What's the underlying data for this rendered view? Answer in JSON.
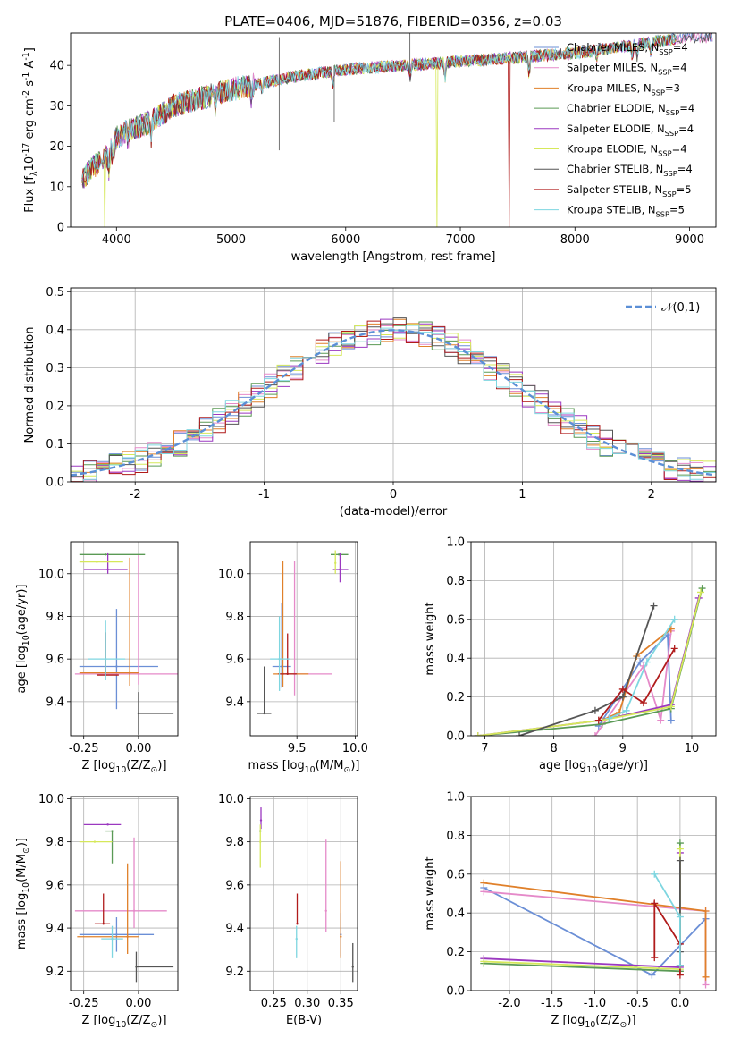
{
  "figure": {
    "title": "PLATE=0406, MJD=51876, FIBERID=0356, z=0.03"
  },
  "colors": {
    "Chabrier MILES": "#6b8fd6",
    "Salpeter MILES": "#e58ac9",
    "Kroupa MILES": "#e0802a",
    "Chabrier ELODIE": "#5a9a55",
    "Salpeter ELODIE": "#9b38c0",
    "Kroupa ELODIE": "#d6e85a",
    "Chabrier STELIB": "#555555",
    "Salpeter STELIB": "#b01b1b",
    "Kroupa STELIB": "#7ed6e0"
  },
  "chart_data": [
    {
      "id": "spectrum",
      "type": "line",
      "title": "PLATE=0406, MJD=51876, FIBERID=0356, z=0.03",
      "xlabel": "wavelength [Angstrom, rest frame]",
      "ylabel": "Flux [f$_\\lambda$10$^{-17}$ erg cm$^{-2}$ s$^{-1}$ A$^{-1}$]",
      "xlim": [
        3600,
        9230
      ],
      "ylim": [
        0,
        48
      ],
      "xticks": [
        4000,
        5000,
        6000,
        7000,
        8000,
        9000
      ],
      "yticks": [
        0,
        10,
        20,
        30,
        40
      ],
      "legend_position": "upper right",
      "series": [
        {
          "name": "Chabrier MILES, N$_{SSP}$=4"
        },
        {
          "name": "Salpeter MILES, N$_{SSP}$=4"
        },
        {
          "name": "Kroupa MILES, N$_{SSP}$=3"
        },
        {
          "name": "Chabrier ELODIE, N$_{SSP}$=4"
        },
        {
          "name": "Salpeter ELODIE, N$_{SSP}$=4"
        },
        {
          "name": "Kroupa ELODIE, N$_{SSP}$=4"
        },
        {
          "name": "Chabrier STELIB, N$_{SSP}$=4"
        },
        {
          "name": "Salpeter STELIB, N$_{SSP}$=5"
        },
        {
          "name": "Kroupa STELIB, N$_{SSP}$=5"
        }
      ],
      "continuum": {
        "x": [
          3700,
          3800,
          3900,
          4000,
          4100,
          4300,
          4500,
          5000,
          5500,
          6000,
          6500,
          7000,
          7500,
          8000,
          8500,
          9000
        ],
        "y": [
          12,
          15,
          17,
          22,
          24,
          26,
          30,
          34,
          37,
          39,
          40,
          41,
          42,
          43,
          45,
          47
        ]
      },
      "drops": [
        {
          "x": 3900,
          "series": "Kroupa ELODIE"
        },
        {
          "x": 6800,
          "series": "Kroupa ELODIE"
        },
        {
          "x": 7430,
          "series": "Salpeter STELIB"
        }
      ],
      "spikes": [
        {
          "x": 5420,
          "ymin": 19,
          "ymax": 47
        },
        {
          "x": 6560,
          "ymin": 38,
          "ymax": 48
        },
        {
          "x": 5900,
          "ymin": 26,
          "ymax": 40
        }
      ]
    },
    {
      "id": "residuals",
      "type": "line",
      "xlabel": "(data-model)/error",
      "ylabel": "Normed distribution",
      "xlim": [
        -2.5,
        2.5
      ],
      "ylim": [
        0,
        0.51
      ],
      "xticks": [
        -2,
        -1,
        0,
        1,
        2
      ],
      "yticks": [
        0.0,
        0.1,
        0.2,
        0.3,
        0.4,
        0.5
      ],
      "grid": true,
      "legend": "$\\mathcal{N}(0,1)$",
      "legend_position": "upper right",
      "bin_width": 0.1
    },
    {
      "id": "age_vs_Z",
      "type": "scatter",
      "xlabel": "Z [log$_{10}$(Z/Z$_\\odot$)]",
      "ylabel": "age  [log$_{10}$(age/yr)]",
      "xlim": [
        -0.31,
        0.18
      ],
      "ylim": [
        9.24,
        10.15
      ],
      "xticks": [
        -0.25,
        0.0
      ],
      "yticks": [
        9.4,
        9.6,
        9.8,
        10.0
      ],
      "grid": true,
      "points": [
        {
          "series": "Chabrier MILES",
          "x": -0.1,
          "y": 9.565,
          "xerr": [
            0.17,
            0.19
          ],
          "yerr": [
            0.2,
            0.27
          ]
        },
        {
          "series": "Salpeter MILES",
          "x": 0.0,
          "y": 9.53,
          "xerr": [
            0.29,
            0.21
          ],
          "yerr": [
            0.05,
            0.56
          ]
        },
        {
          "series": "Kroupa MILES",
          "x": -0.04,
          "y": 9.535,
          "xerr": [
            0.23,
            0.04
          ],
          "yerr": [
            0.06,
            0.54
          ]
        },
        {
          "series": "Chabrier ELODIE",
          "x": -0.15,
          "y": 10.09,
          "xerr": [
            0.12,
            0.18
          ],
          "yerr": [
            0.0,
            0.0
          ]
        },
        {
          "series": "Salpeter ELODIE",
          "x": -0.14,
          "y": 10.02,
          "xerr": [
            0.11,
            0.09
          ],
          "yerr": [
            0.02,
            0.08
          ]
        },
        {
          "series": "Kroupa ELODIE",
          "x": -0.19,
          "y": 10.055,
          "xerr": [
            0.08,
            0.12
          ],
          "yerr": [
            0.0,
            0.0
          ]
        },
        {
          "series": "Chabrier STELIB",
          "x": 0.0,
          "y": 9.345,
          "xerr": [
            0.0,
            0.16
          ],
          "yerr": [
            0.1,
            0.1
          ]
        },
        {
          "series": "Salpeter STELIB",
          "x": -0.15,
          "y": 9.525,
          "xerr": [
            0.04,
            0.06
          ],
          "yerr": [
            0.0,
            0.2
          ]
        },
        {
          "series": "Kroupa STELIB",
          "x": -0.15,
          "y": 9.6,
          "xerr": [
            0.08,
            0.09
          ],
          "yerr": [
            0.1,
            0.18
          ]
        }
      ]
    },
    {
      "id": "age_vs_mass",
      "type": "scatter",
      "xlabel": "mass [log$_{10}$(M/M$_\\odot$)]",
      "ylabel": "",
      "xlim": [
        9.1,
        10.02
      ],
      "ylim": [
        9.24,
        10.15
      ],
      "xticks": [
        9.5,
        10.0
      ],
      "yticks": [
        9.4,
        9.6,
        9.8,
        10.0
      ],
      "grid": true,
      "points": [
        {
          "series": "Chabrier MILES",
          "x": 9.37,
          "y": 9.565,
          "xerr": [
            0.08,
            0.08
          ],
          "yerr": [
            0.1,
            0.3
          ]
        },
        {
          "series": "Salpeter MILES",
          "x": 9.48,
          "y": 9.53,
          "xerr": [
            0.08,
            0.32
          ],
          "yerr": [
            0.1,
            0.53
          ]
        },
        {
          "series": "Kroupa MILES",
          "x": 9.38,
          "y": 9.53,
          "xerr": [
            0.08,
            0.22
          ],
          "yerr": [
            0.06,
            0.53
          ]
        },
        {
          "series": "Chabrier ELODIE",
          "x": 9.86,
          "y": 10.09,
          "xerr": [
            0.07,
            0.08
          ],
          "yerr": [
            0.0,
            0.0
          ]
        },
        {
          "series": "Salpeter ELODIE",
          "x": 9.87,
          "y": 10.02,
          "xerr": [
            0.06,
            0.07
          ],
          "yerr": [
            0.06,
            0.08
          ]
        },
        {
          "series": "Kroupa ELODIE",
          "x": 9.83,
          "y": 10.05,
          "xerr": [
            0.0,
            0.0
          ],
          "yerr": [
            0.05,
            0.06
          ]
        },
        {
          "series": "Chabrier STELIB",
          "x": 9.22,
          "y": 9.345,
          "xerr": [
            0.06,
            0.06
          ],
          "yerr": [
            0.0,
            0.22
          ]
        },
        {
          "series": "Salpeter STELIB",
          "x": 9.42,
          "y": 9.53,
          "xerr": [
            0.08,
            0.08
          ],
          "yerr": [
            0.0,
            0.19
          ]
        },
        {
          "series": "Kroupa STELIB",
          "x": 9.35,
          "y": 9.6,
          "xerr": [
            0.08,
            0.09
          ],
          "yerr": [
            0.15,
            0.2
          ]
        }
      ]
    },
    {
      "id": "weight_vs_age",
      "type": "line",
      "xlabel": "age  [log$_{10}$(age/yr)]",
      "ylabel": "mass weight",
      "xlim": [
        6.8,
        10.35
      ],
      "ylim": [
        0,
        1.0
      ],
      "xticks": [
        7,
        8,
        9,
        10
      ],
      "yticks": [
        0.0,
        0.2,
        0.4,
        0.6,
        0.8,
        1.0
      ],
      "grid": true,
      "series": [
        {
          "series": "Chabrier MILES",
          "x": [
            8.65,
            9.25,
            9.65,
            9.7
          ],
          "y": [
            0.05,
            0.38,
            0.52,
            0.08
          ]
        },
        {
          "series": "Salpeter MILES",
          "x": [
            8.6,
            9.3,
            9.55,
            9.7
          ],
          "y": [
            0.0,
            0.36,
            0.08,
            0.54
          ]
        },
        {
          "series": "Kroupa MILES",
          "x": [
            8.7,
            8.95,
            9.2,
            9.7
          ],
          "y": [
            0.08,
            0.12,
            0.41,
            0.55
          ]
        },
        {
          "series": "Chabrier ELODIE",
          "x": [
            6.9,
            8.7,
            9.7,
            10.15
          ],
          "y": [
            0.0,
            0.06,
            0.14,
            0.76
          ]
        },
        {
          "series": "Salpeter ELODIE",
          "x": [
            6.9,
            8.7,
            9.7,
            10.1
          ],
          "y": [
            0.0,
            0.08,
            0.16,
            0.71
          ]
        },
        {
          "series": "Kroupa ELODIE",
          "x": [
            6.9,
            8.7,
            9.7,
            10.13
          ],
          "y": [
            0.0,
            0.08,
            0.15,
            0.74
          ]
        },
        {
          "series": "Chabrier STELIB",
          "x": [
            7.5,
            8.6,
            9.0,
            9.45
          ],
          "y": [
            0.0,
            0.13,
            0.2,
            0.67
          ]
        },
        {
          "series": "Salpeter STELIB",
          "x": [
            8.65,
            9.0,
            9.3,
            9.75
          ],
          "y": [
            0.08,
            0.24,
            0.17,
            0.45
          ]
        },
        {
          "series": "Kroupa STELIB",
          "x": [
            8.8,
            9.05,
            9.35,
            9.75
          ],
          "y": [
            0.09,
            0.13,
            0.38,
            0.6
          ]
        }
      ]
    },
    {
      "id": "mass_vs_Z",
      "type": "scatter",
      "xlabel": "Z [log$_{10}$(Z/Z$_\\odot$)]",
      "ylabel": "mass [log$_{10}$(M/M$_\\odot$)]",
      "xlim": [
        -0.31,
        0.18
      ],
      "ylim": [
        9.11,
        10.01
      ],
      "xticks": [
        -0.25,
        0.0
      ],
      "yticks": [
        9.2,
        9.4,
        9.6,
        9.8,
        10.0
      ],
      "grid": true,
      "points": [
        {
          "series": "Chabrier MILES",
          "x": -0.1,
          "y": 9.37,
          "xerr": [
            0.17,
            0.17
          ],
          "yerr": [
            0.08,
            0.08
          ]
        },
        {
          "series": "Salpeter MILES",
          "x": -0.02,
          "y": 9.48,
          "xerr": [
            0.27,
            0.15
          ],
          "yerr": [
            0.08,
            0.34
          ]
        },
        {
          "series": "Kroupa MILES",
          "x": -0.05,
          "y": 9.36,
          "xerr": [
            0.23,
            0.05
          ],
          "yerr": [
            0.08,
            0.34
          ]
        },
        {
          "series": "Chabrier ELODIE",
          "x": -0.12,
          "y": 9.85,
          "xerr": [
            0.03,
            0.0
          ],
          "yerr": [
            0.15,
            0.0
          ]
        },
        {
          "series": "Salpeter ELODIE",
          "x": -0.14,
          "y": 9.88,
          "xerr": [
            0.11,
            0.06
          ],
          "yerr": [
            0.0,
            0.0
          ]
        },
        {
          "series": "Kroupa ELODIE",
          "x": -0.2,
          "y": 9.8,
          "xerr": [
            0.07,
            0.08
          ],
          "yerr": [
            0.0,
            0.0
          ]
        },
        {
          "series": "Chabrier STELIB",
          "x": -0.01,
          "y": 9.22,
          "xerr": [
            0.0,
            0.17
          ],
          "yerr": [
            0.07,
            0.07
          ]
        },
        {
          "series": "Salpeter STELIB",
          "x": -0.16,
          "y": 9.42,
          "xerr": [
            0.04,
            0.03
          ],
          "yerr": [
            0.0,
            0.14
          ]
        },
        {
          "series": "Kroupa STELIB",
          "x": -0.12,
          "y": 9.35,
          "xerr": [
            0.05,
            0.05
          ],
          "yerr": [
            0.09,
            0.06
          ]
        }
      ]
    },
    {
      "id": "mass_vs_ebv",
      "type": "scatter",
      "xlabel": "E(B-V)",
      "ylabel": "",
      "xlim": [
        0.215,
        0.375
      ],
      "ylim": [
        9.11,
        10.01
      ],
      "xticks": [
        0.25,
        0.3,
        0.35
      ],
      "yticks": [
        9.2,
        9.4,
        9.6,
        9.8,
        10.0
      ],
      "grid": true,
      "points": [
        {
          "series": "Chabrier MILES",
          "x": 0.35,
          "y": 9.37,
          "yerr": [
            0.1,
            0.1
          ]
        },
        {
          "series": "Salpeter MILES",
          "x": 0.328,
          "y": 9.48,
          "yerr": [
            0.1,
            0.33
          ]
        },
        {
          "series": "Kroupa MILES",
          "x": 0.35,
          "y": 9.36,
          "yerr": [
            0.1,
            0.35
          ]
        },
        {
          "series": "Chabrier ELODIE",
          "x": 0.23,
          "y": 9.85,
          "yerr": [
            0.0,
            0.0
          ]
        },
        {
          "series": "Salpeter ELODIE",
          "x": 0.231,
          "y": 9.9,
          "yerr": [
            0.04,
            0.06
          ]
        },
        {
          "series": "Kroupa ELODIE",
          "x": 0.23,
          "y": 9.8,
          "yerr": [
            0.12,
            0.08
          ]
        },
        {
          "series": "Chabrier STELIB",
          "x": 0.368,
          "y": 9.22,
          "yerr": [
            0.07,
            0.11
          ]
        },
        {
          "series": "Salpeter STELIB",
          "x": 0.285,
          "y": 9.42,
          "yerr": [
            0.0,
            0.14
          ]
        },
        {
          "series": "Kroupa STELIB",
          "x": 0.284,
          "y": 9.35,
          "yerr": [
            0.09,
            0.06
          ]
        }
      ]
    },
    {
      "id": "weight_vs_Z",
      "type": "line",
      "xlabel": "Z [log$_{10}$(Z/Z$_\\odot$)]",
      "ylabel": "mass weight",
      "xlim": [
        -2.45,
        0.42
      ],
      "ylim": [
        0,
        1.0
      ],
      "xticks": [
        -2.0,
        -1.5,
        -1.0,
        -0.5,
        0.0
      ],
      "yticks": [
        0.0,
        0.2,
        0.4,
        0.6,
        0.8,
        1.0
      ],
      "grid": true,
      "series": [
        {
          "series": "Chabrier MILES",
          "x": [
            -2.3,
            -0.33,
            0.3
          ],
          "y": [
            0.53,
            0.08,
            0.37
          ]
        },
        {
          "series": "Salpeter MILES",
          "x": [
            -2.3,
            0.3,
            0.3
          ],
          "y": [
            0.51,
            0.41,
            0.03
          ]
        },
        {
          "series": "Kroupa MILES",
          "x": [
            -2.3,
            0.3,
            0.3
          ],
          "y": [
            0.555,
            0.41,
            0.07
          ]
        },
        {
          "series": "Chabrier ELODIE",
          "x": [
            -2.3,
            0.0,
            0.0
          ],
          "y": [
            0.14,
            0.1,
            0.76
          ]
        },
        {
          "series": "Salpeter ELODIE",
          "x": [
            -2.3,
            0.0,
            0.0
          ],
          "y": [
            0.165,
            0.12,
            0.71
          ]
        },
        {
          "series": "Kroupa ELODIE",
          "x": [
            -2.3,
            0.0,
            0.0
          ],
          "y": [
            0.15,
            0.11,
            0.73
          ]
        },
        {
          "series": "Chabrier STELIB",
          "x": [
            0.0,
            0.0,
            0.0
          ],
          "y": [
            0.2,
            0.67,
            0.13
          ]
        },
        {
          "series": "Salpeter STELIB",
          "x": [
            -0.3,
            -0.3,
            0.0,
            0.0
          ],
          "y": [
            0.17,
            0.45,
            0.24,
            0.08
          ]
        },
        {
          "series": "Kroupa STELIB",
          "x": [
            -0.3,
            0.0,
            0.0
          ],
          "y": [
            0.6,
            0.38,
            0.13
          ]
        }
      ]
    }
  ]
}
